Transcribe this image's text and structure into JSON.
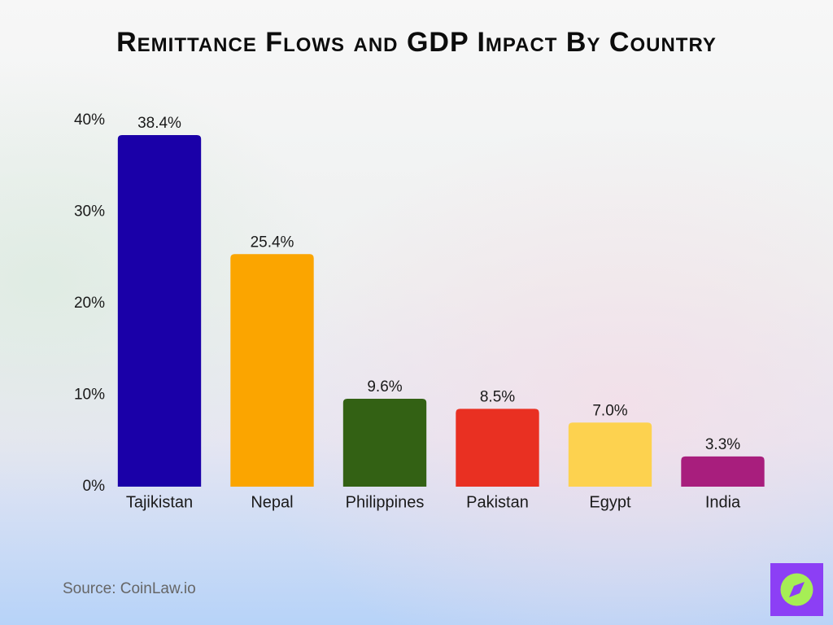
{
  "chart_data": {
    "type": "bar",
    "title": "Remittance Flows and GDP Impact By Country",
    "categories": [
      "Tajikistan",
      "Nepal",
      "Philippines",
      "Pakistan",
      "Egypt",
      "India"
    ],
    "values": [
      38.4,
      25.4,
      9.6,
      8.5,
      7.0,
      3.3
    ],
    "value_labels": [
      "38.4%",
      "25.4%",
      "9.6%",
      "8.5%",
      "7.0%",
      "3.3%"
    ],
    "colors": [
      "#1a00a8",
      "#fba500",
      "#336114",
      "#e93022",
      "#fdd24f",
      "#a81e7d"
    ],
    "ylim": [
      0,
      40
    ],
    "yticks": [
      {
        "value": 0,
        "label": "0%"
      },
      {
        "value": 10,
        "label": "10%"
      },
      {
        "value": 20,
        "label": "20%"
      },
      {
        "value": 30,
        "label": "30%"
      },
      {
        "value": 40,
        "label": "40%"
      }
    ],
    "grid": false,
    "source": "Source: CoinLaw.io"
  }
}
